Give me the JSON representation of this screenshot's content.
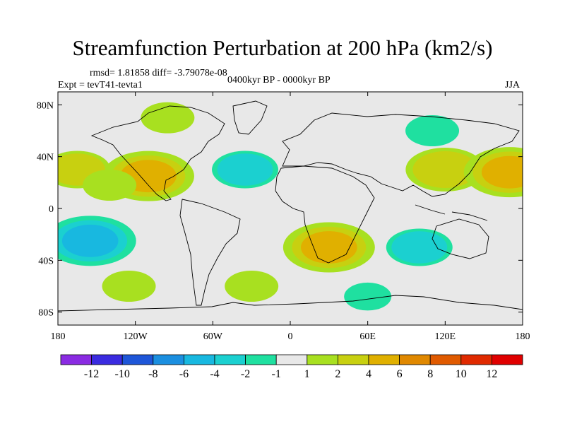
{
  "title": "Streamfunction Perturbation at 200 hPa (km2/s)",
  "stats": "rmsd= 1.81858 diff= -3.79078e-08",
  "experiment": "Expt = tevT41-tevta1",
  "period": "0400kyr BP - 0000kyr BP",
  "season": "JJA",
  "chart_data": {
    "type": "heatmap",
    "projection": "cylindrical-equidistant",
    "variable": "Streamfunction Perturbation at 200 hPa",
    "units": "km2/s",
    "lon_range": [
      -180,
      180
    ],
    "lat_range": [
      -90,
      90
    ],
    "x_ticks": [
      {
        "value": -180,
        "label": "180"
      },
      {
        "value": -120,
        "label": "120W"
      },
      {
        "value": -60,
        "label": "60W"
      },
      {
        "value": 0,
        "label": "0"
      },
      {
        "value": 60,
        "label": "60E"
      },
      {
        "value": 120,
        "label": "120E"
      },
      {
        "value": 180,
        "label": "180"
      }
    ],
    "y_ticks": [
      {
        "value": 80,
        "label": "80N"
      },
      {
        "value": 40,
        "label": "40N"
      },
      {
        "value": 0,
        "label": "0"
      },
      {
        "value": -40,
        "label": "40S"
      },
      {
        "value": -80,
        "label": "80S"
      }
    ],
    "colorbar": {
      "labels": [
        "-12",
        "-10",
        "-8",
        "-6",
        "-4",
        "-2",
        "-1",
        "1",
        "2",
        "4",
        "6",
        "8",
        "10",
        "12"
      ],
      "colors": [
        "#8a2be2",
        "#3a2be0",
        "#1e56d8",
        "#1b8fe0",
        "#18b8e0",
        "#1bd0d0",
        "#1fe0a0",
        "#e8e8e8",
        "#a8e020",
        "#c8d010",
        "#e0b000",
        "#e08800",
        "#e05a00",
        "#e02a00",
        "#e00000"
      ]
    },
    "anomalies": [
      {
        "name": "north-america-positive",
        "lon": -95,
        "lat": 70,
        "value": 2
      },
      {
        "name": "n-atlantic-negative",
        "lon": -35,
        "lat": 30,
        "value": -3
      },
      {
        "name": "mexico-positive",
        "lon": -110,
        "lat": 25,
        "value": 5
      },
      {
        "name": "c-pacific-north-positive",
        "lon": -165,
        "lat": 30,
        "value": 3
      },
      {
        "name": "e-pacific-north-positive",
        "lon": -140,
        "lat": 18,
        "value": 2
      },
      {
        "name": "asia-positive",
        "lon": 120,
        "lat": 30,
        "value": 4
      },
      {
        "name": "siberia-negative",
        "lon": 110,
        "lat": 60,
        "value": -2
      },
      {
        "name": "nw-pacific-positive",
        "lon": 170,
        "lat": 28,
        "value": 5
      },
      {
        "name": "s-africa-positive",
        "lon": 30,
        "lat": -30,
        "value": 5
      },
      {
        "name": "s-pacific-negative",
        "lon": -155,
        "lat": -25,
        "value": -5
      },
      {
        "name": "s-indian-negative",
        "lon": 100,
        "lat": -30,
        "value": -3
      },
      {
        "name": "se-pacific-positive",
        "lon": -125,
        "lat": -60,
        "value": 2
      },
      {
        "name": "s-atlantic-positive",
        "lon": -30,
        "lat": -60,
        "value": 2
      },
      {
        "name": "antarctic-negative",
        "lon": 60,
        "lat": -68,
        "value": -1.5
      }
    ]
  }
}
